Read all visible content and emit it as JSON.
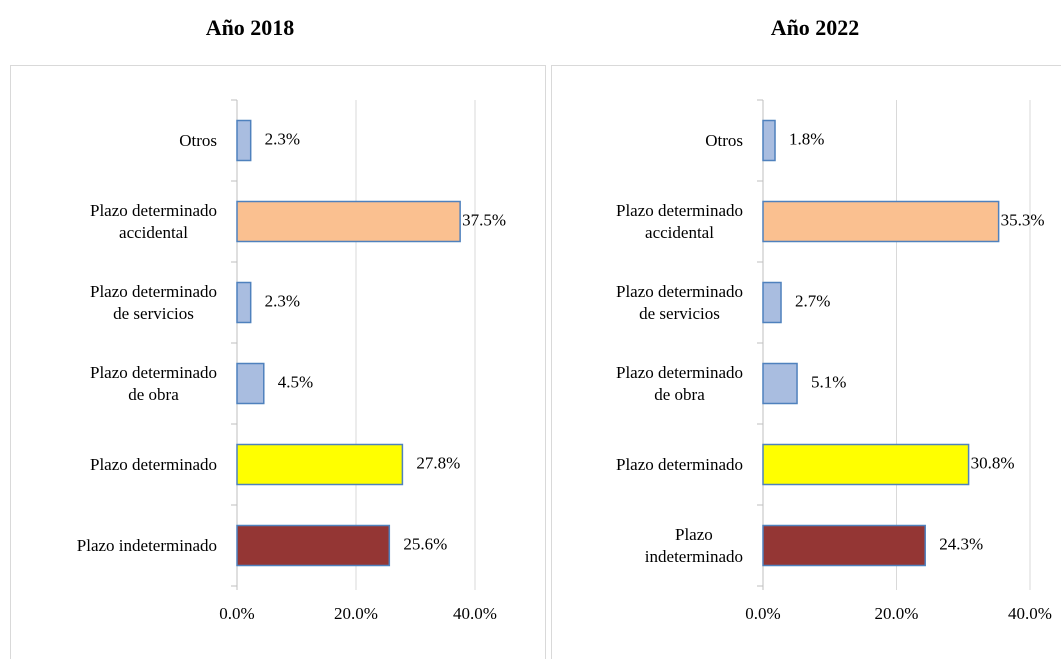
{
  "chart_data": [
    {
      "type": "bar",
      "orientation": "horizontal",
      "title": "Año 2018",
      "categories": [
        "Otros",
        "Plazo determinado\naccidental",
        "Plazo determinado\nde servicios",
        "Plazo determinado\nde obra",
        "Plazo determinado",
        "Plazo indeterminado"
      ],
      "values": [
        2.3,
        37.5,
        2.3,
        4.5,
        27.8,
        25.6
      ],
      "value_labels": [
        "2.3%",
        "37.5%",
        "2.3%",
        "4.5%",
        "27.8%",
        "25.6%"
      ],
      "colors": [
        "#a9bde0",
        "#fac090",
        "#a9bde0",
        "#a9bde0",
        "#ffff00",
        "#943634"
      ],
      "xlim": [
        0,
        40
      ],
      "xticks": [
        {
          "value": 0,
          "label": "0.0%"
        },
        {
          "value": 20,
          "label": "20.0%"
        },
        {
          "value": 40,
          "label": "40.0%"
        }
      ],
      "grid": true
    },
    {
      "type": "bar",
      "orientation": "horizontal",
      "title": "Año 2022",
      "categories": [
        "Otros",
        "Plazo determinado\naccidental",
        "Plazo determinado\nde servicios",
        "Plazo determinado\nde obra",
        "Plazo determinado",
        "Plazo\nindeterminado"
      ],
      "values": [
        1.8,
        35.3,
        2.7,
        5.1,
        30.8,
        24.3
      ],
      "value_labels": [
        "1.8%",
        "35.3%",
        "2.7%",
        "5.1%",
        "30.8%",
        "24.3%"
      ],
      "colors": [
        "#a9bde0",
        "#fac090",
        "#a9bde0",
        "#a9bde0",
        "#ffff00",
        "#943634"
      ],
      "xlim": [
        0,
        40
      ],
      "xticks": [
        {
          "value": 0,
          "label": "0.0%"
        },
        {
          "value": 20,
          "label": "20.0%"
        },
        {
          "value": 40,
          "label": "40.0%"
        }
      ],
      "grid": true
    }
  ]
}
